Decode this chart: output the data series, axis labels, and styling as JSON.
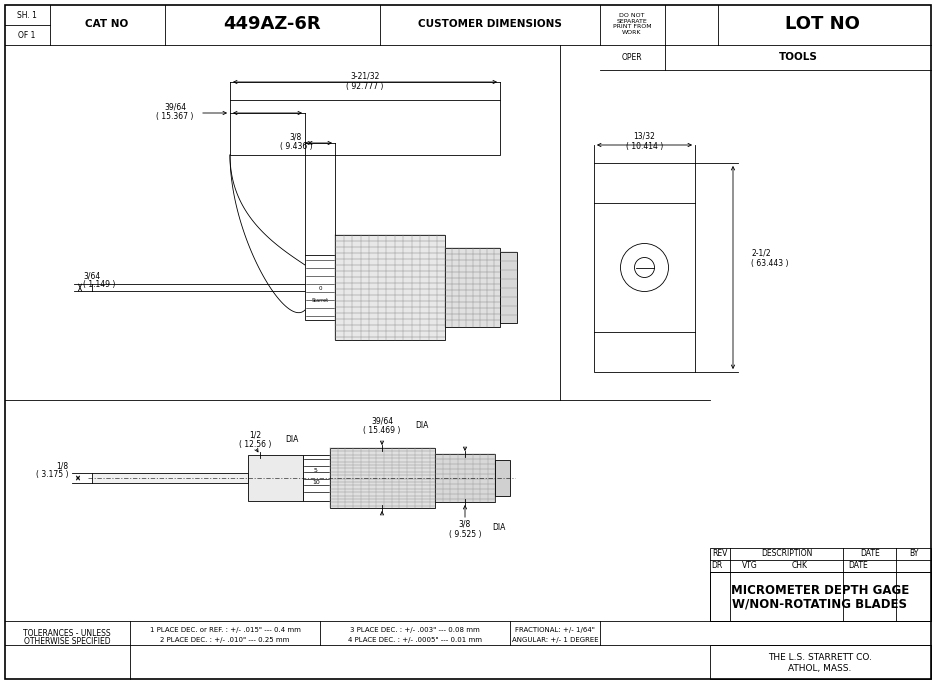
{
  "title_sh": "SH. 1",
  "title_of": "OF 1",
  "cat_no_label": "CAT NO",
  "cat_no_value": "449AZ-6R",
  "customer_dim": "CUSTOMER DIMENSIONS",
  "donot_sep": "DO NOT\nSEPARATE\nPRINT FROM\nWORK",
  "lot_no": "LOT NO",
  "oper_label": "OPER",
  "oper_value": "TOOLS",
  "rev_label": "REV",
  "desc_label": "DESCRIPTION",
  "date_label": "DATE",
  "by_label": "BY",
  "dr_label": "DR",
  "vtg_label": "VTG",
  "chk_label": "CHK",
  "date2_label": "DATE",
  "part_name1": "MICROMETER DEPTH GAGE",
  "part_name2": "W/NON-ROTATING BLADES",
  "company1": "THE L.S. STARRETT CO.",
  "company2": "ATHOL, MASS.",
  "tol_label": "TOLERANCES - UNLESS\nOTHERWISE SPECIFIED",
  "tol_1": "1 PLACE DEC. or REF. : +/- .015\" --- 0.4 mm",
  "tol_2": "2 PLACE DEC. : +/- .010\" --- 0.25 mm",
  "tol_3": "3 PLACE DEC. : +/- .003\" --- 0.08 mm",
  "tol_4": "4 PLACE DEC. : +/- .0005\" --- 0.01 mm",
  "tol_frac": "FRACTIONAL: +/- 1/64\"",
  "tol_ang": "ANGULAR: +/- 1 DEGREE",
  "dim_3_21_32": "3-21/32",
  "dim_92_777": "( 92.777 )",
  "dim_39_64_top": "39/64",
  "dim_15_367": "( 15.367 )",
  "dim_3_8_top": "3/8",
  "dim_9_436": "( 9.436 )",
  "dim_3_64": "3/64",
  "dim_1_149": "( 1.149 )",
  "dim_13_32": "13/32",
  "dim_10_414": "( 10.414 )",
  "dim_2_1_2": "2-1/2",
  "dim_63_443": "( 63.443 )",
  "dim_1_8": "1/8",
  "dim_3_175": "( 3.175 )",
  "dim_1_2": "1/2",
  "dim_12_56": "( 12.56 )",
  "dim_39_64_bot": "39/64",
  "dim_15_469": "( 15.469 )",
  "dim_3_8_bot": "3/8",
  "dim_9_525": "( 9.525 )",
  "bg_color": "#ffffff",
  "line_color": "#000000"
}
